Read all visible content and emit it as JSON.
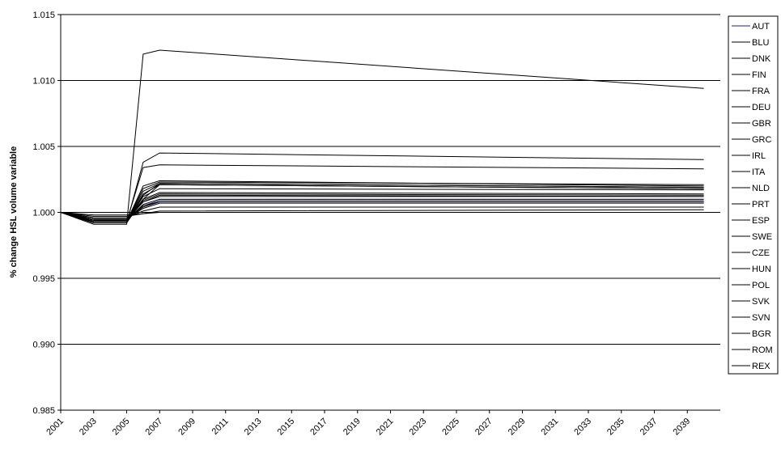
{
  "chart_data": {
    "type": "line",
    "title": "",
    "xlabel": "",
    "ylabel": "% change HSL volume variable",
    "ylim": [
      0.985,
      1.015
    ],
    "yticks": [
      "0.985",
      "0.990",
      "0.995",
      "1.000",
      "1.005",
      "1.010",
      "1.015"
    ],
    "xticks": [
      "2001",
      "2003",
      "2005",
      "2007",
      "2009",
      "2011",
      "2013",
      "2015",
      "2017",
      "2019",
      "2021",
      "2023",
      "2025",
      "2027",
      "2029",
      "2031",
      "2033",
      "2035",
      "2037",
      "2039"
    ],
    "grid": "horizontal",
    "legend_position": "right",
    "x": [
      2001,
      2003,
      2005,
      2006,
      2007,
      2040
    ],
    "series": [
      {
        "name": "AUT",
        "values": [
          1.0,
          0.9994,
          0.9994,
          1.0005,
          1.0009,
          1.0009
        ]
      },
      {
        "name": "BLU",
        "values": [
          1.0,
          0.9993,
          0.9993,
          1.0034,
          1.0036,
          1.0033
        ]
      },
      {
        "name": "DNK",
        "values": [
          1.0,
          0.9994,
          0.9994,
          1.001,
          1.0015,
          1.0014
        ]
      },
      {
        "name": "FIN",
        "values": [
          1.0,
          0.9993,
          0.9993,
          1.002,
          1.0024,
          1.002
        ]
      },
      {
        "name": "FRA",
        "values": [
          1.0,
          0.9995,
          0.9995,
          1.0003,
          1.0007,
          1.0007
        ]
      },
      {
        "name": "DEU",
        "values": [
          1.0,
          0.9996,
          0.9996,
          1.0001,
          1.0004,
          1.0004
        ]
      },
      {
        "name": "GBR",
        "values": [
          1.0,
          0.9997,
          0.9997,
          0.9999,
          1.0001,
          1.0002
        ]
      },
      {
        "name": "GRC",
        "values": [
          1.0,
          0.9991,
          0.9991,
          1.012,
          1.0123,
          1.0094
        ]
      },
      {
        "name": "IRL",
        "values": [
          1.0,
          0.9992,
          0.9992,
          1.0038,
          1.0045,
          1.004
        ]
      },
      {
        "name": "ITA",
        "values": [
          1.0,
          0.9995,
          0.9995,
          1.0004,
          1.0008,
          1.0008
        ]
      },
      {
        "name": "NLD",
        "values": [
          1.0,
          0.9994,
          0.9994,
          1.0006,
          1.001,
          1.001
        ]
      },
      {
        "name": "PRT",
        "values": [
          1.0,
          0.9993,
          0.9993,
          1.0016,
          1.0022,
          1.0019
        ]
      },
      {
        "name": "ESP",
        "values": [
          1.0,
          0.9994,
          0.9994,
          1.0008,
          1.0012,
          1.0012
        ]
      },
      {
        "name": "SWE",
        "values": [
          1.0,
          0.9995,
          0.9995,
          1.0005,
          1.0008,
          1.0008
        ]
      },
      {
        "name": "CZE",
        "values": [
          1.0,
          0.9993,
          0.9993,
          1.0012,
          1.0018,
          1.0017
        ]
      },
      {
        "name": "HUN",
        "values": [
          1.0,
          0.9993,
          0.9993,
          1.0014,
          1.0021,
          1.0018
        ]
      },
      {
        "name": "POL",
        "values": [
          1.0,
          0.9994,
          0.9994,
          1.0008,
          1.0013,
          1.0012
        ]
      },
      {
        "name": "SVK",
        "values": [
          1.0,
          0.9993,
          0.9993,
          1.0018,
          1.0023,
          1.0021
        ]
      },
      {
        "name": "SVN",
        "values": [
          1.0,
          0.9994,
          0.9994,
          1.0009,
          1.0014,
          1.0013
        ]
      },
      {
        "name": "BGR",
        "values": [
          1.0,
          0.9992,
          0.9992,
          1.0013,
          1.0022,
          1.0019
        ]
      },
      {
        "name": "ROM",
        "values": [
          1.0,
          0.9992,
          0.9992,
          1.001,
          1.0021,
          1.0018
        ]
      },
      {
        "name": "REX",
        "values": [
          1.0,
          0.9998,
          0.9998,
          0.9999,
          1.0,
          1.0
        ]
      }
    ],
    "colors": {
      "AUT": "#1f1f8f",
      "default": "#000000",
      "grid": "#000000",
      "legend_border": "#000000"
    }
  }
}
